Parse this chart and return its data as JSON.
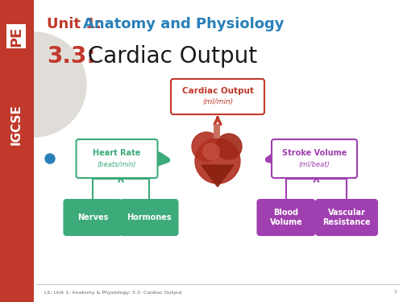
{
  "bg_color": "#f0eeeb",
  "sidebar_color": "#c0392b",
  "title_unit": "Unit 1: ",
  "title_unit_color": "#c0392b",
  "title_subject": "Anatomy and Physiology",
  "title_subject_color": "#2980b9",
  "subtitle_num": "3.3:",
  "subtitle_num_color": "#c0392b",
  "subtitle_text": " Cardiac Output",
  "subtitle_text_color": "#1a1a1a",
  "footer_text": "L5: Unit 1: Anatomy & Physiology: 3.3: Cardiac Output",
  "footer_page": "1",
  "box_cardiac_label": "Cardiac Output",
  "box_cardiac_sub": "(ml/min)",
  "box_cardiac_color": "#c0392b",
  "box_cardiac_fill": "#ffffff",
  "box_hr_label": "Heart Rate",
  "box_hr_sub": "(beats/min)",
  "box_hr_color": "#3daa7a",
  "box_hr_fill": "#ffffff",
  "box_sv_label": "Stroke Volume",
  "box_sv_sub": "(ml/beat)",
  "box_sv_color": "#a040b0",
  "box_sv_fill": "#ffffff",
  "box_nerves_label": "Nerves",
  "box_nerves_color": "#3daa7a",
  "box_nerves_fill": "#3daa7a",
  "box_hormones_label": "Hormones",
  "box_hormones_color": "#3daa7a",
  "box_hormones_fill": "#3daa7a",
  "box_blood_label": "Blood\nVolume",
  "box_blood_color": "#a040b0",
  "box_blood_fill": "#a040b0",
  "box_vasc_label": "Vascular\nResistance",
  "box_vasc_color": "#a040b0",
  "box_vasc_fill": "#a040b0",
  "arrow_up_color": "#c0392b",
  "arrow_hr_color": "#3daa7a",
  "arrow_sv_color": "#a040b0",
  "arrow_nerves_color": "#3daa7a",
  "arrow_blood_color": "#a040b0"
}
